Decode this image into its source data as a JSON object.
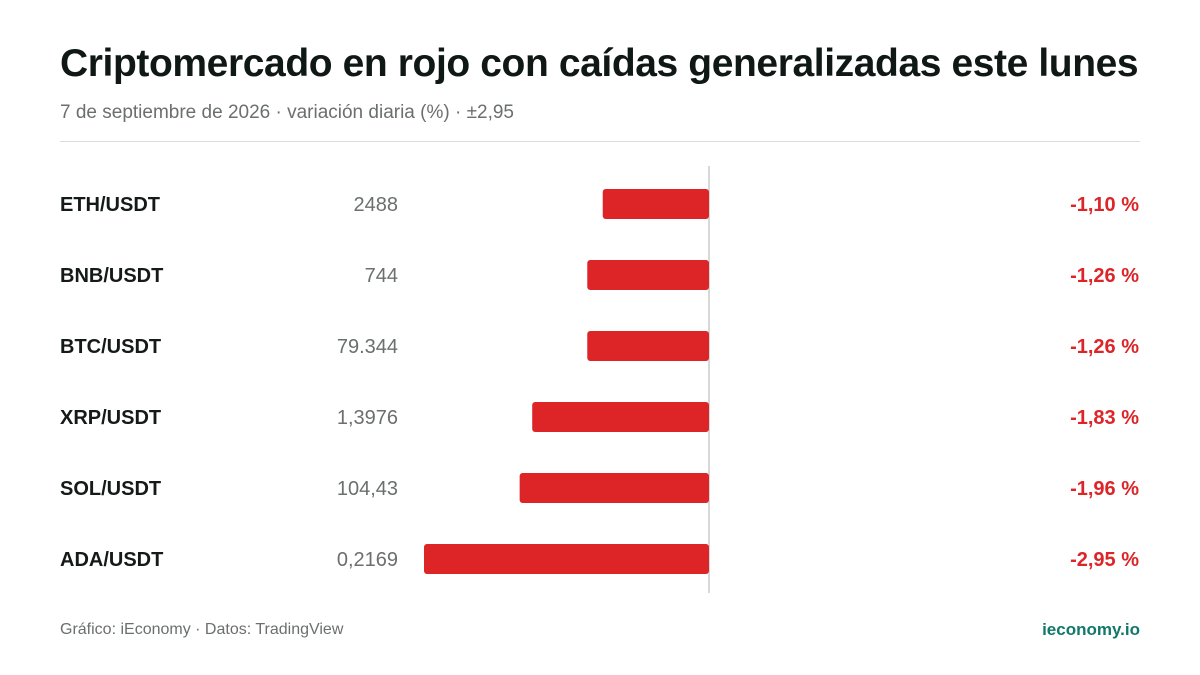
{
  "title": "Criptomercado en rojo con caídas generalizadas este lunes",
  "subtitle": "7 de septiembre de 2026 · variación diaria (%) · ±2,95",
  "footer": {
    "source": "Gráfico: iEconomy · Datos: TradingView",
    "brand": "ieconomy.io"
  },
  "colors": {
    "negative": "#dd2528",
    "brand": "#11786a",
    "axis": "#d6d9d8"
  },
  "chart_data": {
    "type": "bar",
    "orientation": "horizontal",
    "categories": [
      "ETH/USDT",
      "BNB/USDT",
      "BTC/USDT",
      "XRP/USDT",
      "SOL/USDT",
      "ADA/USDT"
    ],
    "prices": [
      "2488",
      "744",
      "79.344",
      "1,3976",
      "104,43",
      "0,2169"
    ],
    "values": [
      -1.1,
      -1.26,
      -1.26,
      -1.83,
      -1.96,
      -2.95
    ],
    "value_labels": [
      "-1,10 %",
      "-1,26 %",
      "-1,26 %",
      "-1,83 %",
      "-1,96 %",
      "-2,95 %"
    ],
    "xlim": [
      -2.95,
      2.95
    ],
    "grid": false
  }
}
